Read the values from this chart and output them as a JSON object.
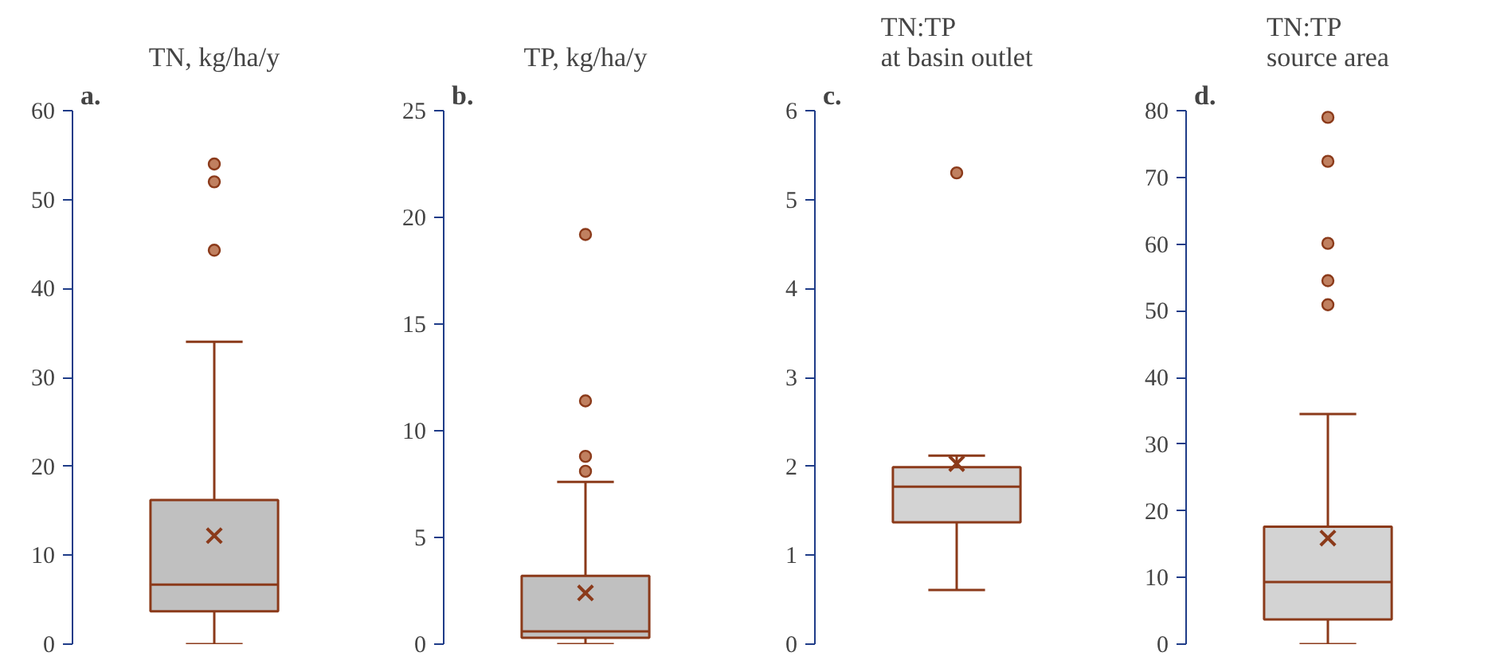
{
  "chart_data": [
    {
      "type": "box",
      "title": "TN, kg/ha/y",
      "annotations": [
        "a."
      ],
      "categories": [
        null
      ],
      "ylim": [
        0,
        60
      ],
      "yticks": [
        0,
        10,
        20,
        30,
        40,
        50,
        60
      ],
      "tick_labels": "y",
      "grid": false,
      "color": "#c0c0c0",
      "boxes": [
        {
          "low": 0,
          "q1": 3.7,
          "median": 6.7,
          "q3": 16.2,
          "high": 34,
          "mean": 12.2,
          "outliers": [
            44.3,
            52,
            54
          ]
        }
      ]
    },
    {
      "type": "box",
      "title": "TP, kg/ha/y",
      "annotations": [
        "b."
      ],
      "categories": [
        null
      ],
      "ylim": [
        0,
        25
      ],
      "yticks": [
        0,
        5,
        10,
        15,
        20,
        25
      ],
      "tick_labels": "y",
      "grid": false,
      "color": "#c0c0c0",
      "boxes": [
        {
          "low": 0,
          "q1": 0.3,
          "median": 0.6,
          "q3": 3.2,
          "high": 7.6,
          "mean": 2.4,
          "outliers": [
            8.1,
            8.8,
            11.4,
            19.2
          ]
        }
      ]
    },
    {
      "type": "box",
      "title": "TN:TP\nat basin outlet",
      "annotations": [
        "c."
      ],
      "categories": [
        null
      ],
      "ylim": [
        0,
        6
      ],
      "yticks": [
        0,
        1,
        2,
        3,
        4,
        5,
        6
      ],
      "tick_labels": "y",
      "grid": false,
      "color": "#d3d3d3",
      "boxes": [
        {
          "low": 0.61,
          "q1": 1.37,
          "median": 1.77,
          "q3": 1.99,
          "high": 2.12,
          "mean": 2.03,
          "outliers": [
            5.3
          ]
        }
      ]
    },
    {
      "type": "box",
      "title": "TN:TP\nsource area",
      "annotations": [
        "d."
      ],
      "categories": [
        null
      ],
      "ylim": [
        0,
        80
      ],
      "yticks": [
        0,
        10,
        20,
        30,
        40,
        50,
        60,
        70,
        80
      ],
      "tick_labels": "y",
      "grid": false,
      "color": "#d3d3d3",
      "boxes": [
        {
          "low": 0,
          "q1": 3.7,
          "median": 9.3,
          "q3": 17.6,
          "high": 34.5,
          "mean": 15.9,
          "outliers": [
            50.9,
            54.5,
            60.1,
            72.4,
            79
          ]
        }
      ]
    }
  ]
}
